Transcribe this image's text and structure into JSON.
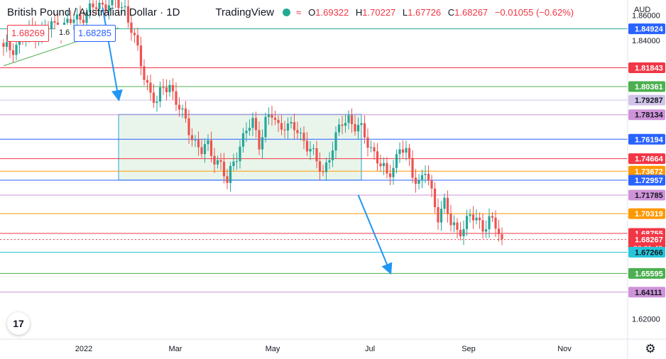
{
  "header": {
    "symbol": "British Pound / Australian Dollar · 1D",
    "brand": "TradingView",
    "open_label": "O",
    "open": "1.69322",
    "high_label": "H",
    "high": "1.70227",
    "low_label": "L",
    "low": "1.67726",
    "close_label": "C",
    "close": "1.68267",
    "change": "−0.01055 (−0.62%)",
    "indicator_icon": "wave-icon",
    "status_color": "#22ab94"
  },
  "trade_panel": {
    "sell": "1.68269",
    "spread": "1.6",
    "buy": "1.68285"
  },
  "currency": "AUD",
  "countdown": "08:01:48",
  "logo_text": "17",
  "settings_icon": "gear-icon",
  "chart_data": {
    "type": "candlestick",
    "title": "",
    "xlabel": "",
    "ylabel": "",
    "x_ticks": [
      "2022",
      "Mar",
      "May",
      "Jul",
      "Sep",
      "Nov"
    ],
    "y_ticks": [
      "1.86000",
      "1.84000",
      "1.62000"
    ],
    "ylim": [
      1.604,
      1.872
    ],
    "up_color": "#26a69a",
    "down_color": "#ef5350",
    "levels": [
      {
        "value": "1.84924",
        "color": "#26a69a",
        "label_bg": "#2962ff"
      },
      {
        "value": "1.81843",
        "color": "#f23645",
        "label_bg": "#f23645"
      },
      {
        "value": "1.80361",
        "color": "#4caf50",
        "label_bg": "#4caf50"
      },
      {
        "value": "1.79287",
        "color": "#d1c4e9",
        "label_bg": "#d1c4e9"
      },
      {
        "value": "1.78134",
        "color": "#ce93d8",
        "label_bg": "#ce93d8"
      },
      {
        "value": "1.76194",
        "color": "#2962ff",
        "label_bg": "#2962ff"
      },
      {
        "value": "1.74664",
        "color": "#f23645",
        "label_bg": "#f23645"
      },
      {
        "value": "1.73672",
        "color": "#ff9800",
        "label_bg": "#ff9800"
      },
      {
        "value": "1.72957",
        "color": "#2962ff",
        "label_bg": "#2962ff"
      },
      {
        "value": "1.71785",
        "color": "#ce93d8",
        "label_bg": "#ce93d8"
      },
      {
        "value": "1.70319",
        "color": "#ff9800",
        "label_bg": "#ff9800"
      },
      {
        "value": "1.68755",
        "color": "#f23645",
        "label_bg": "#f23645"
      },
      {
        "value": "1.68267",
        "color": "#f23645",
        "label_bg": "#f23645"
      },
      {
        "value": "1.67266",
        "color": "#26c6da",
        "label_bg": "#26c6da"
      },
      {
        "value": "1.65595",
        "color": "#4caf50",
        "label_bg": "#4caf50"
      },
      {
        "value": "1.64111",
        "color": "#ce93d8",
        "label_bg": "#ce93d8"
      }
    ],
    "ohlc_anchors": [
      [
        0,
        1.832
      ],
      [
        3,
        1.835
      ],
      [
        6,
        1.842
      ],
      [
        9,
        1.848
      ],
      [
        12,
        1.846
      ],
      [
        15,
        1.852
      ],
      [
        18,
        1.85
      ],
      [
        22,
        1.856
      ],
      [
        26,
        1.862
      ],
      [
        30,
        1.868
      ],
      [
        33,
        1.87
      ],
      [
        36,
        1.868
      ],
      [
        38,
        1.866
      ],
      [
        40,
        1.85
      ],
      [
        42,
        1.83
      ],
      [
        44,
        1.812
      ],
      [
        46,
        1.8
      ],
      [
        48,
        1.79
      ],
      [
        50,
        1.802
      ],
      [
        52,
        1.806
      ],
      [
        54,
        1.792
      ],
      [
        56,
        1.78
      ],
      [
        58,
        1.77
      ],
      [
        60,
        1.76
      ],
      [
        62,
        1.752
      ],
      [
        64,
        1.756
      ],
      [
        66,
        1.748
      ],
      [
        68,
        1.742
      ],
      [
        70,
        1.726
      ],
      [
        72,
        1.745
      ],
      [
        74,
        1.758
      ],
      [
        76,
        1.768
      ],
      [
        78,
        1.775
      ],
      [
        80,
        1.76
      ],
      [
        82,
        1.776
      ],
      [
        84,
        1.78
      ],
      [
        86,
        1.772
      ],
      [
        88,
        1.775
      ],
      [
        90,
        1.77
      ],
      [
        92,
        1.768
      ],
      [
        94,
        1.762
      ],
      [
        96,
        1.755
      ],
      [
        98,
        1.742
      ],
      [
        100,
        1.736
      ],
      [
        102,
        1.75
      ],
      [
        104,
        1.762
      ],
      [
        106,
        1.775
      ],
      [
        108,
        1.78
      ],
      [
        110,
        1.772
      ],
      [
        112,
        1.768
      ],
      [
        114,
        1.76
      ],
      [
        116,
        1.752
      ],
      [
        118,
        1.74
      ],
      [
        120,
        1.733
      ],
      [
        122,
        1.742
      ],
      [
        124,
        1.755
      ],
      [
        126,
        1.75
      ],
      [
        128,
        1.736
      ],
      [
        130,
        1.728
      ],
      [
        132,
        1.736
      ],
      [
        134,
        1.718
      ],
      [
        136,
        1.703
      ],
      [
        138,
        1.712
      ],
      [
        140,
        1.694
      ],
      [
        142,
        1.69
      ],
      [
        144,
        1.694
      ],
      [
        146,
        1.7
      ],
      [
        148,
        1.698
      ],
      [
        150,
        1.694
      ],
      [
        152,
        1.698
      ],
      [
        154,
        1.692
      ],
      [
        156,
        1.683
      ]
    ],
    "trendline_early": [
      [
        0,
        1.82
      ],
      [
        36,
        1.85
      ]
    ],
    "arrows": [
      {
        "from": [
          31,
          1.866
        ],
        "to": [
          36,
          1.794
        ]
      },
      {
        "from": [
          111,
          1.718
        ],
        "to": [
          121,
          1.657
        ]
      }
    ],
    "range_box": {
      "x0": 36,
      "x1": 112,
      "y0": 1.7297,
      "y1": 1.7816
    }
  }
}
